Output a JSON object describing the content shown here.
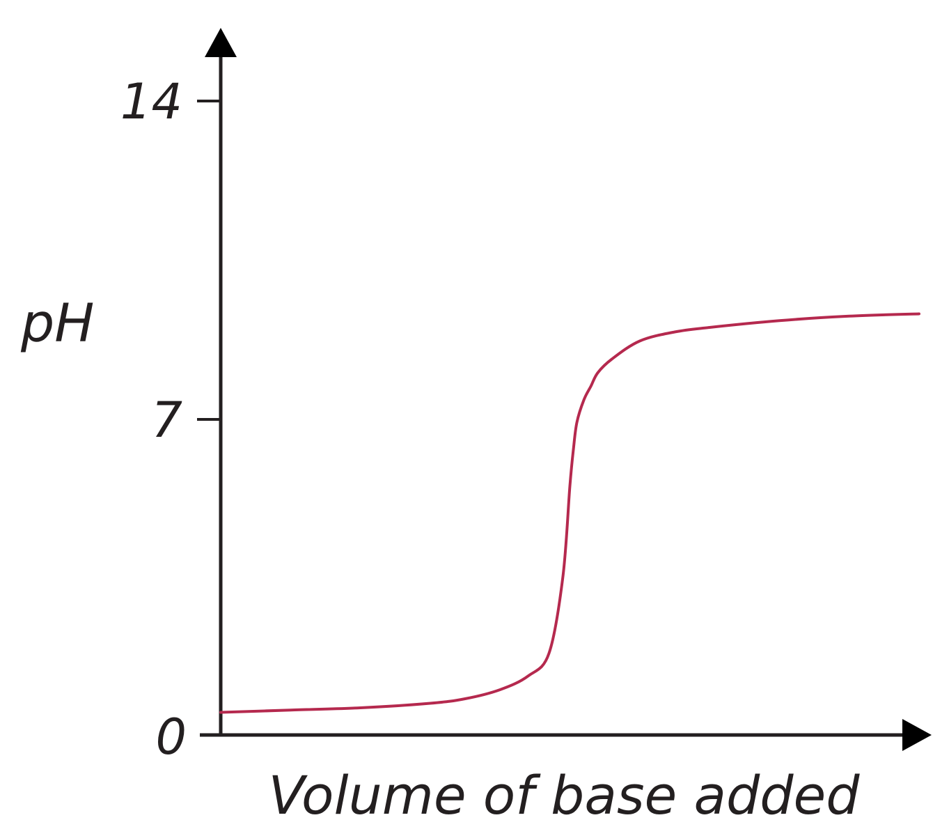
{
  "chart_data": {
    "type": "line",
    "title": "",
    "xlabel": "Volume of base added",
    "ylabel": "pH",
    "ylim": [
      0,
      14
    ],
    "yticks": [
      "0",
      "7",
      "14"
    ],
    "xticks": [],
    "grid": false,
    "legend": "none",
    "series": [
      {
        "color": "#b5294e",
        "x": [
          0,
          0.1,
          0.2,
          0.3,
          0.35,
          0.4,
          0.44,
          0.47,
          0.49,
          0.5,
          0.505,
          0.51,
          0.52,
          0.53,
          0.54,
          0.56,
          0.6,
          0.65,
          0.7,
          0.8,
          0.9,
          1.0
        ],
        "y": [
          0.5,
          0.55,
          0.6,
          0.7,
          0.8,
          1.0,
          1.3,
          1.8,
          3.5,
          5.5,
          6.3,
          6.9,
          7.4,
          7.7,
          8.0,
          8.3,
          8.7,
          8.9,
          9.0,
          9.15,
          9.25,
          9.3
        ]
      }
    ],
    "colors": {
      "axis": "#231f20",
      "curve": "#b5294e"
    }
  }
}
